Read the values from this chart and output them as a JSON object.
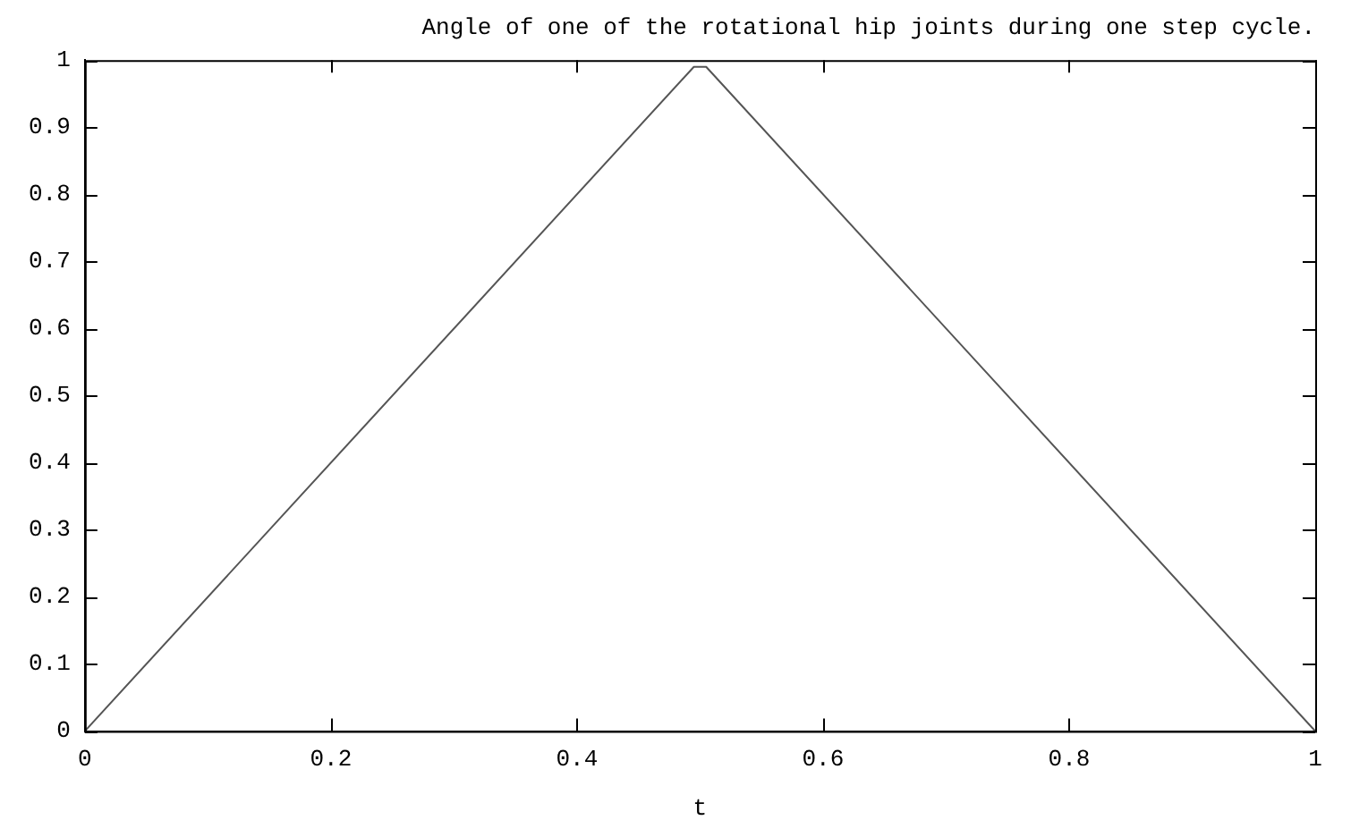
{
  "chart_data": {
    "type": "line",
    "title": "Angle of one of the rotational hip joints during one step cycle.",
    "xlabel": "t",
    "x": [
      0,
      0.49,
      0.495,
      0.505,
      0.51,
      1
    ],
    "series": [
      {
        "color": "#555555",
        "values": [
          0,
          0.98,
          0.99,
          0.99,
          0.98,
          0
        ]
      }
    ],
    "xlim": [
      0,
      1
    ],
    "xticks": [
      0,
      0.2,
      0.4,
      0.6,
      0.8,
      1
    ],
    "ylim": [
      0,
      1
    ],
    "yticks": [
      0,
      0.1,
      0.2,
      0.3,
      0.4,
      0.5,
      0.6,
      0.7,
      0.8,
      0.9,
      1
    ],
    "legend": false,
    "marker": "none",
    "line_style": "solid"
  }
}
